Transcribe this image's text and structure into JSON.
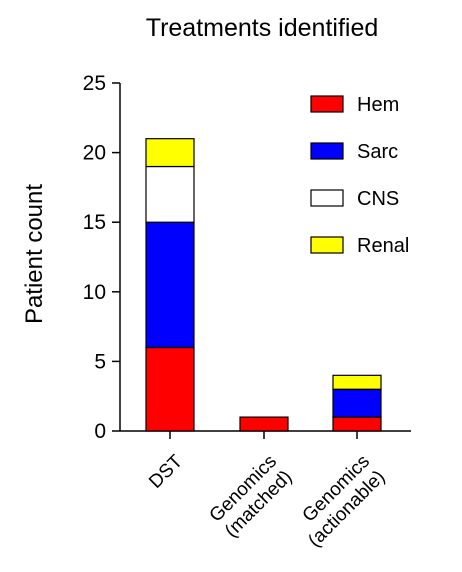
{
  "chart_data": {
    "type": "bar",
    "stacked": true,
    "title": "Treatments identified",
    "xlabel": "",
    "ylabel": "Patient count",
    "ylim": [
      0,
      25
    ],
    "yticks": [
      0,
      5,
      10,
      15,
      20,
      25
    ],
    "grid": false,
    "legend_position": "top-right",
    "categories": [
      [
        "DST"
      ],
      [
        "Genomics",
        "(matched)"
      ],
      [
        "Genomics",
        "(actionable)"
      ]
    ],
    "series": [
      {
        "name": "Hem",
        "color": "#ff0000",
        "values": [
          6,
          1,
          1
        ]
      },
      {
        "name": "Sarc",
        "color": "#0000ff",
        "values": [
          9,
          0,
          2
        ]
      },
      {
        "name": "CNS",
        "color": "#ffffff",
        "values": [
          4,
          0,
          0
        ]
      },
      {
        "name": "Renal",
        "color": "#ffff00",
        "values": [
          2,
          0,
          1
        ]
      }
    ]
  }
}
